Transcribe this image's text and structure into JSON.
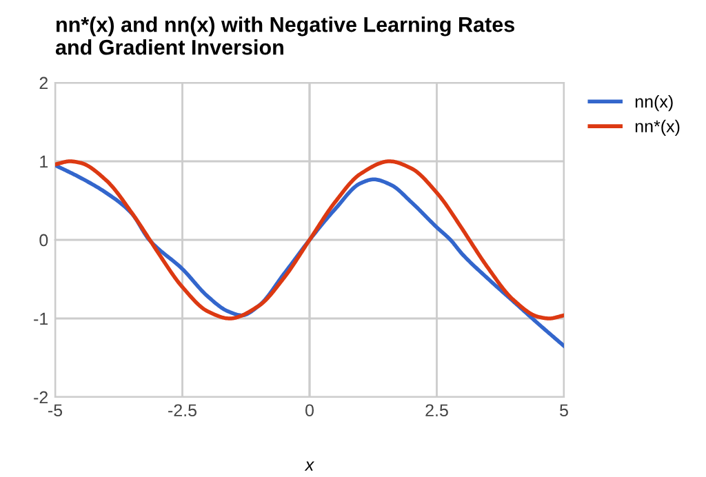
{
  "chart_data": {
    "type": "line",
    "title": "nn*(x) and nn(x) with Negative Learning Rates\nand Gradient Inversion",
    "xlabel": "x",
    "xlim": [
      -5,
      5
    ],
    "ylim": [
      -2,
      2
    ],
    "xticks": [
      -5,
      -2.5,
      0,
      2.5,
      5
    ],
    "yticks": [
      -2,
      -1,
      0,
      1,
      2
    ],
    "grid": true,
    "legend": "top right",
    "line_style": "solid",
    "marker": "none",
    "series": [
      {
        "name": "nn(x)",
        "color": "#3366cc",
        "x": [
          -5,
          -4.5,
          -4,
          -3.5,
          -3.15,
          -2.5,
          -2,
          -1.6,
          -1.33,
          -1,
          -0.5,
          0,
          0.5,
          1,
          1.26,
          1.6,
          2,
          2.5,
          2.77,
          3,
          3.5,
          4,
          4.5,
          5
        ],
        "values": [
          0.95,
          0.79,
          0.6,
          0.34,
          0,
          -0.37,
          -0.72,
          -0.91,
          -0.96,
          -0.84,
          -0.43,
          0,
          0.39,
          0.72,
          0.77,
          0.7,
          0.48,
          0.16,
          0,
          -0.18,
          -0.49,
          -0.78,
          -1.07,
          -1.35
        ]
      },
      {
        "name": "nn*(x)",
        "color": "#dc3912",
        "x": [
          -5,
          -4.71,
          -4.5,
          -4,
          -3.5,
          -3.14,
          -3,
          -2.5,
          -2,
          -1.57,
          -1,
          -0.5,
          0,
          0.5,
          1,
          1.57,
          2,
          2.5,
          3,
          3.14,
          3.5,
          4,
          4.5,
          4.71,
          5
        ],
        "values": [
          0.96,
          1.0,
          0.98,
          0.76,
          0.35,
          0,
          -0.14,
          -0.6,
          -0.91,
          -1.0,
          -0.84,
          -0.48,
          0,
          0.48,
          0.84,
          1.0,
          0.91,
          0.6,
          0.14,
          0,
          -0.35,
          -0.76,
          -0.98,
          -1.0,
          -0.96
        ]
      }
    ]
  }
}
